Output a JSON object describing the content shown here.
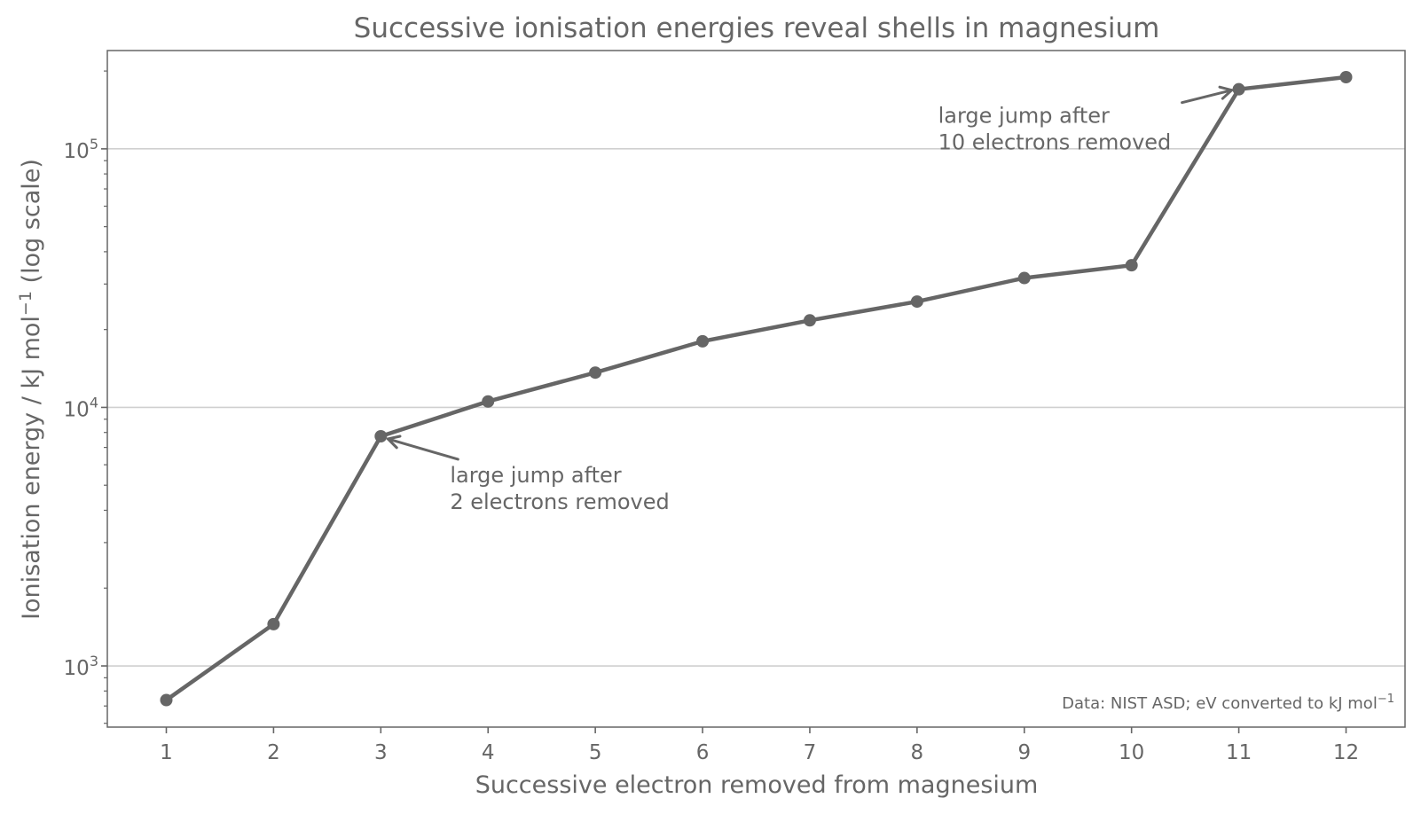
{
  "chart_data": {
    "type": "line",
    "title": "Successive ionisation energies reveal shells in magnesium",
    "xlabel": "Successive electron removed from magnesium",
    "ylabel_text": "Ionisation energy / kJ mol",
    "ylabel_sup": "−1",
    "ylabel_suffix": " (log scale)",
    "yscale": "log",
    "xlim": [
      0.45,
      12.55
    ],
    "ylim": [
      580,
      240000
    ],
    "x": [
      1,
      2,
      3,
      4,
      5,
      6,
      7,
      8,
      9,
      10,
      11,
      12
    ],
    "y": [
      738,
      1451,
      7733,
      10543,
      13630,
      18020,
      21711,
      25661,
      31653,
      35458,
      169988,
      189368
    ],
    "x_ticks": [
      "1",
      "2",
      "3",
      "4",
      "5",
      "6",
      "7",
      "8",
      "9",
      "10",
      "11",
      "12"
    ],
    "y_ticks": [
      {
        "value": 1000,
        "base": "10",
        "exponent": "3"
      },
      {
        "value": 10000,
        "base": "10",
        "exponent": "4"
      },
      {
        "value": 100000,
        "base": "10",
        "exponent": "5"
      }
    ],
    "grid": "horizontal major",
    "color": "#666666",
    "annotations": [
      {
        "point_index": 2,
        "lines": [
          "large jump after",
          "2 electrons removed"
        ],
        "placement": "lower-right"
      },
      {
        "point_index": 10,
        "lines": [
          "large jump after",
          "10 electrons removed"
        ],
        "placement": "left"
      }
    ],
    "source_note_text": "Data: NIST ASD; eV converted to kJ mol",
    "source_note_sup": "−1"
  }
}
